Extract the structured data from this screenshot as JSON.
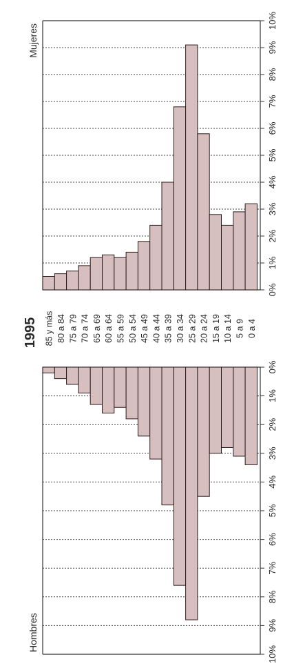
{
  "chart_data": {
    "type": "bar",
    "title": "1995",
    "orientation": "rotated-90-ccw",
    "categories": [
      "85 y más",
      "80 a 84",
      "75 a 79",
      "70 a 74",
      "65 a 69",
      "60 a 64",
      "55 a 59",
      "50 a 54",
      "45 a 49",
      "40 a 44",
      "35 a 39",
      "30 a 34",
      "25 a 29",
      "20 a 24",
      "15 a 19",
      "10 a 14",
      "5 a 9",
      "0 a 4"
    ],
    "series": [
      {
        "name": "Mujeres",
        "values": [
          0.5,
          0.6,
          0.7,
          0.9,
          1.2,
          1.3,
          1.2,
          1.4,
          1.8,
          2.4,
          4.0,
          6.8,
          9.1,
          5.8,
          2.8,
          2.4,
          2.9,
          3.2
        ]
      },
      {
        "name": "Hombres",
        "values": [
          0.2,
          0.4,
          0.6,
          0.9,
          1.3,
          1.6,
          1.4,
          1.8,
          2.4,
          3.2,
          4.8,
          7.6,
          8.8,
          4.5,
          3.0,
          2.8,
          3.1,
          3.4
        ]
      }
    ],
    "tick_labels_women": [
      "0%",
      "1%",
      "2%",
      "3%",
      "4%",
      "5%",
      "6%",
      "7%",
      "8%",
      "9%",
      "10%"
    ],
    "tick_labels_men": [
      "10%",
      "9%",
      "8%",
      "7%",
      "6%",
      "5%",
      "4%",
      "3%",
      "2%",
      "1%",
      "0%"
    ],
    "xlim": [
      0,
      10
    ],
    "grid": true,
    "colors": {
      "bar_fill": "#d7bfc0",
      "bar_stroke": "#2a1c1c",
      "grid": "#444444",
      "text": "#2a2a2a",
      "frame": "#333333"
    }
  }
}
